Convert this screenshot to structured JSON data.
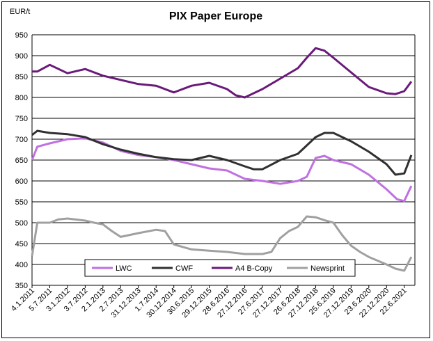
{
  "chart_data": {
    "type": "line",
    "title": "PIX Paper Europe",
    "ylabel": "EUR/t",
    "xlabel": "",
    "ylim": [
      350,
      950
    ],
    "yticks": [
      350,
      400,
      450,
      500,
      550,
      600,
      650,
      700,
      750,
      800,
      850,
      900,
      950
    ],
    "x_tick_labels": [
      "4.1.2011",
      "5.7.2011",
      "3.1.2012",
      "3.7.2012",
      "2.1.2013",
      "2.7.2013",
      "31.12.2013",
      "1.7.2014",
      "30.12.2014",
      "30.6.2015",
      "29.12.2015",
      "28.6.2016",
      "27.12.2016",
      "27.6.2017",
      "27.12.2017",
      "26.6.2018",
      "27.12.2018",
      "25.6.2019",
      "27.12.2019",
      "23.6.2020",
      "22.12.2020",
      "22.6.2021"
    ],
    "x_range": [
      0,
      21.6
    ],
    "legend_position": "bottom-center",
    "series": [
      {
        "name": "LWC",
        "color": "#c070e0",
        "x": [
          0,
          0.3,
          1,
          2,
          3,
          4,
          5,
          6,
          7,
          8,
          9,
          10,
          11,
          12,
          13,
          14,
          15,
          15.5,
          16,
          16.5,
          17,
          18,
          19,
          20,
          20.6,
          21,
          21.4
        ],
        "values": [
          650,
          682,
          690,
          700,
          702,
          692,
          672,
          662,
          657,
          650,
          640,
          630,
          625,
          605,
          600,
          593,
          600,
          610,
          655,
          660,
          650,
          640,
          615,
          580,
          556,
          552,
          588
        ]
      },
      {
        "name": "CWF",
        "color": "#303030",
        "x": [
          0,
          0.3,
          1,
          2,
          3,
          4,
          5,
          6,
          7,
          8,
          9,
          10,
          11,
          12,
          12.5,
          13,
          14,
          15,
          16,
          16.5,
          17,
          18,
          19,
          20,
          20.5,
          21,
          21.4
        ],
        "values": [
          710,
          720,
          715,
          712,
          705,
          688,
          675,
          665,
          657,
          652,
          650,
          660,
          650,
          635,
          628,
          628,
          650,
          665,
          705,
          715,
          715,
          695,
          670,
          640,
          615,
          618,
          662
        ]
      },
      {
        "name": "A4 B-Copy",
        "color": "#6a1a7a",
        "x": [
          0,
          0.3,
          1,
          2,
          3,
          4,
          5,
          6,
          7,
          8,
          9,
          10,
          11,
          11.5,
          12,
          13,
          14,
          15,
          15.5,
          16,
          16.5,
          17,
          18,
          19,
          20,
          20.5,
          21,
          21.4
        ],
        "values": [
          862,
          862,
          878,
          858,
          868,
          852,
          842,
          832,
          828,
          812,
          828,
          835,
          820,
          805,
          800,
          820,
          845,
          870,
          895,
          918,
          912,
          895,
          860,
          825,
          810,
          808,
          815,
          838
        ]
      },
      {
        "name": "Newsprint",
        "color": "#a0a0a0",
        "x": [
          0,
          0.3,
          1,
          1.5,
          2,
          3,
          3.5,
          4,
          4.5,
          5,
          6,
          7,
          7.5,
          8,
          9,
          10,
          11,
          12,
          13,
          13.5,
          14,
          14.5,
          15,
          15.5,
          16,
          16.5,
          17,
          17.5,
          18,
          18.5,
          19,
          20,
          20.5,
          21,
          21.4
        ],
        "values": [
          420,
          500,
          500,
          508,
          510,
          505,
          500,
          496,
          480,
          466,
          475,
          483,
          480,
          448,
          436,
          433,
          430,
          425,
          425,
          430,
          463,
          480,
          490,
          515,
          513,
          506,
          500,
          470,
          445,
          430,
          418,
          400,
          390,
          385,
          418
        ]
      }
    ]
  }
}
